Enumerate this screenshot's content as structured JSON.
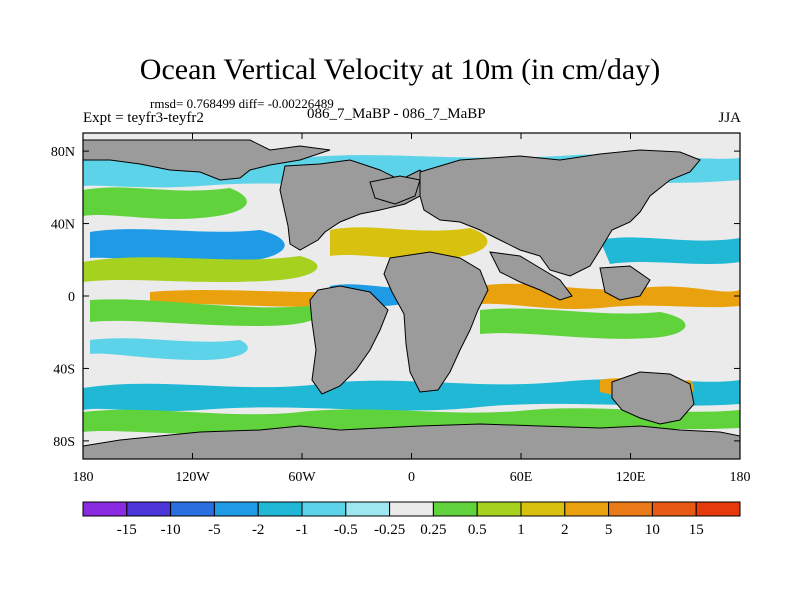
{
  "title": "Ocean Vertical Velocity at 10m (in cm/day)",
  "stats_line": "rmsd= 0.768499  diff= -0.00226489",
  "expt_label": "Expt = teyfr3-teyfr2",
  "case_label": "086_7_MaBP - 086_7_MaBP",
  "season": "JJA",
  "chart_data": {
    "type": "heatmap",
    "variable": "Ocean Vertical Velocity at 10m",
    "units": "cm/day",
    "x_axis": {
      "range": [
        -180,
        180
      ],
      "ticks": [
        -180,
        -120,
        -60,
        0,
        60,
        120,
        180
      ],
      "tick_labels": [
        "180",
        "120W",
        "60W",
        "0",
        "60E",
        "120E",
        "180"
      ]
    },
    "y_axis": {
      "range": [
        -90,
        90
      ],
      "ticks": [
        80,
        40,
        0,
        -40,
        -80
      ],
      "tick_labels": [
        "80N",
        "40N",
        "0",
        "40S",
        "80S"
      ]
    },
    "colorbar": {
      "levels": [
        -15,
        -10,
        -5,
        -2,
        -1,
        -0.5,
        -0.25,
        0.25,
        0.5,
        1,
        2,
        5,
        10,
        15
      ],
      "tick_labels": [
        "-15",
        "-10",
        "-5",
        "-2",
        "-1",
        "-0.5",
        "-0.25",
        "0.25",
        "0.5",
        "1",
        "2",
        "5",
        "10",
        "15"
      ],
      "colors": [
        "#8a2be2",
        "#4b34d8",
        "#2a6fe0",
        "#1f9be6",
        "#21b8d6",
        "#5cd3e8",
        "#9ee7f0",
        "#ebebeb",
        "#5fd23c",
        "#a6d11e",
        "#d8c20f",
        "#e9a20e",
        "#ea7a18",
        "#e85a14",
        "#e63a0c"
      ]
    },
    "land_color": "#9b9b9b",
    "missing_color": "#ebebeb"
  }
}
